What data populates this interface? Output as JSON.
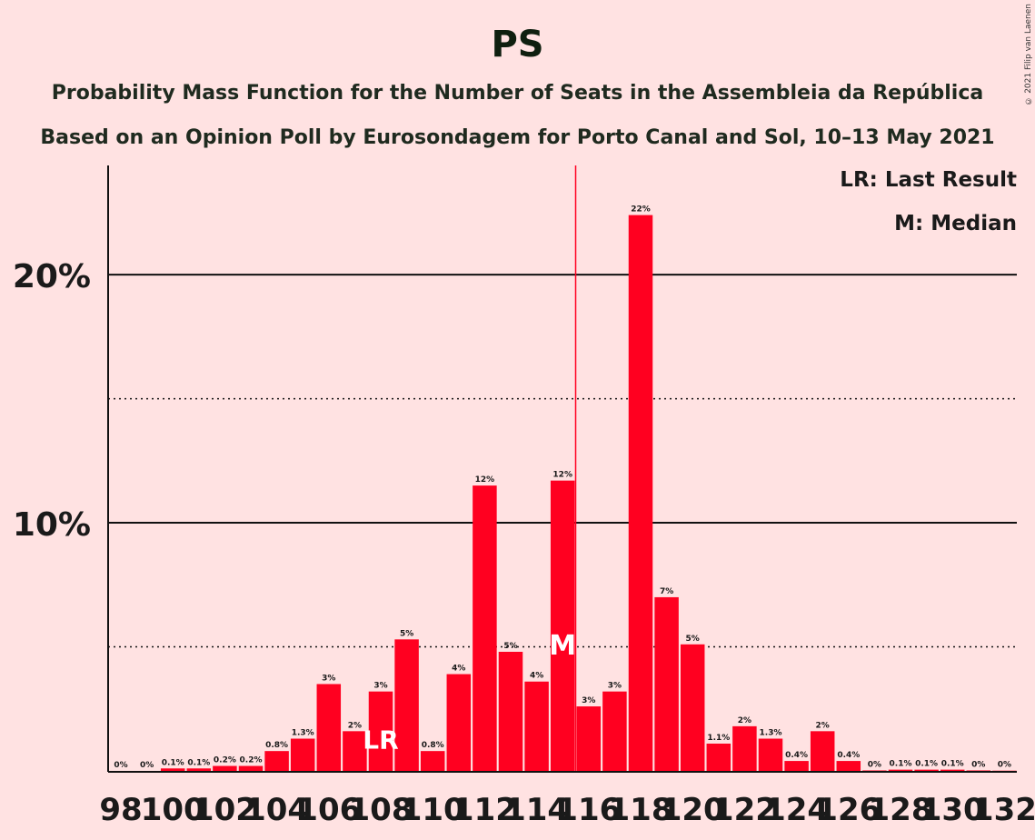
{
  "title": "PS",
  "subtitle1": "Probability Mass Function for the Number of Seats in the Assembleia da República",
  "subtitle2": "Based on an Opinion Poll by Eurosondagem for Porto Canal and Sol, 10–13 May 2021",
  "copyright": "© 2021 Filip van Laenen",
  "legend": {
    "last_result": "LR: Last Result",
    "median": "M: Median"
  },
  "colors": {
    "bar": "#FF0020",
    "background": "#FFE2E2",
    "median_line": "#FF0020"
  },
  "chart_data": {
    "type": "bar",
    "xlabel": "",
    "ylabel": "",
    "ylim": [
      0,
      24.4
    ],
    "y_ticks": [
      {
        "value": 10,
        "label": "10%"
      },
      {
        "value": 20,
        "label": "20%"
      }
    ],
    "dotted_gridlines": [
      5,
      15
    ],
    "x_tick_labels": [
      "98",
      "100",
      "102",
      "104",
      "106",
      "108",
      "110",
      "112",
      "114",
      "116",
      "118",
      "120",
      "122",
      "124",
      "126",
      "128",
      "130",
      "132"
    ],
    "categories": [
      98,
      99,
      100,
      101,
      102,
      103,
      104,
      105,
      106,
      107,
      108,
      109,
      110,
      111,
      112,
      113,
      114,
      115,
      116,
      117,
      118,
      119,
      120,
      121,
      122,
      123,
      124,
      125,
      126,
      127,
      128,
      129,
      130,
      131,
      132
    ],
    "values": [
      0,
      0,
      0.1,
      0.1,
      0.2,
      0.2,
      0.8,
      1.3,
      3.5,
      1.6,
      3.2,
      5.3,
      0.8,
      3.9,
      11.5,
      4.8,
      3.6,
      11.7,
      2.6,
      3.2,
      22.4,
      7.0,
      5.1,
      1.1,
      1.8,
      1.3,
      0.4,
      1.6,
      0.4,
      0.02,
      0.05,
      0.05,
      0.05,
      0.02,
      0.01
    ],
    "data_labels": [
      "0%",
      "0%",
      "0.1%",
      "0.1%",
      "0.2%",
      "0.2%",
      "0.8%",
      "1.3%",
      "3%",
      "2%",
      "3%",
      "5%",
      "0.8%",
      "4%",
      "12%",
      "5%",
      "4%",
      "12%",
      "3%",
      "3%",
      "22%",
      "7%",
      "5%",
      "1.1%",
      "2%",
      "1.3%",
      "0.4%",
      "2%",
      "0.4%",
      "0%",
      "0.1%",
      "0.1%",
      "0.1%",
      "0%",
      "0%"
    ],
    "last_result": {
      "seat": 108,
      "label": "LR"
    },
    "median": {
      "seat": 115,
      "label": "M"
    }
  }
}
